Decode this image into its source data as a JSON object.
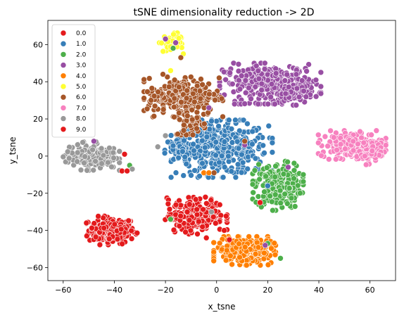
{
  "chart_data": {
    "type": "scatter",
    "title": "tSNE dimensionality reduction -> 2D",
    "xlabel": "x_tsne",
    "ylabel": "y_tsne",
    "xlim": [
      -66,
      70
    ],
    "ylim": [
      -67,
      73
    ],
    "xticks": [
      -60,
      -40,
      -20,
      0,
      20,
      40,
      60
    ],
    "yticks": [
      -60,
      -40,
      -20,
      0,
      20,
      40,
      60
    ],
    "tick_labels": {
      "x": [
        "−60",
        "−40",
        "−20",
        "0",
        "20",
        "40",
        "60"
      ],
      "y": [
        "−60",
        "−40",
        "−20",
        "0",
        "20",
        "40",
        "60"
      ]
    },
    "legend_position": "top-left",
    "legend_entries": [
      "0.0",
      "1.0",
      "2.0",
      "3.0",
      "4.0",
      "5.0",
      "6.0",
      "7.0",
      "8.0",
      "9.0"
    ],
    "colors": {
      "0.0": "#e41a1c",
      "1.0": "#377eb8",
      "2.0": "#4daf4a",
      "3.0": "#984ea3",
      "4.0": "#ff7f00",
      "5.0": "#ffff33",
      "6.0": "#a65628",
      "7.0": "#f781bf",
      "8.0": "#999999",
      "9.0": "#e41a1c"
    },
    "clusters": [
      {
        "label": "0.0",
        "cx": -41,
        "cy": -40,
        "sx": 4.5,
        "sy": 3.5,
        "n": 190
      },
      {
        "label": "1.0",
        "cx": 2,
        "cy": 4,
        "sx": 9,
        "sy": 7,
        "n": 380
      },
      {
        "label": "1.0",
        "cx": -14,
        "cy": 3,
        "sx": 3,
        "sy": 4,
        "n": 60
      },
      {
        "label": "2.0",
        "cx": 24,
        "cy": -16,
        "sx": 4.5,
        "sy": 6,
        "n": 240
      },
      {
        "label": "3.0",
        "cx": 21,
        "cy": 39,
        "sx": 9,
        "sy": 5,
        "n": 320
      },
      {
        "label": "3.0",
        "cx": 30,
        "cy": 34,
        "sx": 3,
        "sy": 3,
        "n": 60
      },
      {
        "label": "4.0",
        "cx": 11,
        "cy": -51,
        "sx": 5.5,
        "sy": 3.5,
        "n": 240
      },
      {
        "label": "5.0",
        "cx": -18,
        "cy": 61,
        "sx": 2,
        "sy": 2.5,
        "n": 45
      },
      {
        "label": "6.0",
        "cx": -13,
        "cy": 32,
        "sx": 7,
        "sy": 5,
        "n": 260
      },
      {
        "label": "6.0",
        "cx": -10,
        "cy": 18,
        "sx": 3,
        "sy": 4,
        "n": 50
      },
      {
        "label": "7.0",
        "cx": 53,
        "cy": 6,
        "sx": 6,
        "sy": 3.5,
        "n": 220
      },
      {
        "label": "7.0",
        "cx": 58,
        "cy": 2,
        "sx": 3,
        "sy": 3,
        "n": 60
      },
      {
        "label": "8.0",
        "cx": -49,
        "cy": 0,
        "sx": 5,
        "sy": 3.5,
        "n": 180
      },
      {
        "label": "9.0",
        "cx": -8,
        "cy": -32,
        "sx": 5.5,
        "sy": 4.5,
        "n": 240
      }
    ],
    "stragglers": [
      {
        "label": "0.0",
        "x": -37,
        "y": -8
      },
      {
        "label": "0.0",
        "x": -36,
        "y": 1
      },
      {
        "label": "1.0",
        "x": 20,
        "y": -16
      },
      {
        "label": "2.0",
        "x": -34,
        "y": -5
      },
      {
        "label": "2.0",
        "x": -18,
        "y": -34
      },
      {
        "label": "2.0",
        "x": -17,
        "y": 58
      },
      {
        "label": "2.0",
        "x": 20,
        "y": -47
      },
      {
        "label": "2.0",
        "x": 25,
        "y": -55
      },
      {
        "label": "3.0",
        "x": -20,
        "y": 63
      },
      {
        "label": "3.0",
        "x": -16,
        "y": 61
      },
      {
        "label": "3.0",
        "x": -48,
        "y": 8
      },
      {
        "label": "3.0",
        "x": 28,
        "y": -6
      },
      {
        "label": "3.0",
        "x": 11,
        "y": 6
      },
      {
        "label": "3.0",
        "x": 7,
        "y": 28
      },
      {
        "label": "3.0",
        "x": -3,
        "y": 26
      },
      {
        "label": "3.0",
        "x": 19,
        "y": -48
      },
      {
        "label": "4.0",
        "x": -5,
        "y": -9
      },
      {
        "label": "4.0",
        "x": -3,
        "y": -9
      },
      {
        "label": "5.0",
        "x": -18,
        "y": 46
      },
      {
        "label": "5.0",
        "x": -13,
        "y": 55
      },
      {
        "label": "6.0",
        "x": -21,
        "y": 44
      },
      {
        "label": "6.0",
        "x": -14,
        "y": 53
      },
      {
        "label": "6.0",
        "x": 11,
        "y": 8
      },
      {
        "label": "6.0",
        "x": -1,
        "y": -9
      },
      {
        "label": "8.0",
        "x": -33,
        "y": -7
      },
      {
        "label": "8.0",
        "x": -20,
        "y": 11
      },
      {
        "label": "8.0",
        "x": -23,
        "y": 5
      },
      {
        "label": "8.0",
        "x": -2,
        "y": -30
      },
      {
        "label": "9.0",
        "x": -35,
        "y": -8
      },
      {
        "label": "9.0",
        "x": 17,
        "y": -25
      },
      {
        "label": "9.0",
        "x": 3,
        "y": -40
      },
      {
        "label": "9.0",
        "x": 5,
        "y": -45
      },
      {
        "label": "9.0",
        "x": -4,
        "y": -44
      }
    ]
  }
}
